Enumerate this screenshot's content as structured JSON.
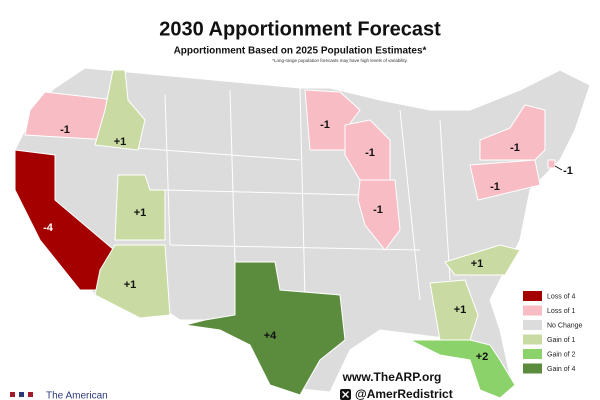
{
  "header": {
    "title": "2030 Apportionment Forecast",
    "subtitle": "Apportionment Based on 2025 Population Estimates*",
    "footnote": "*Long-range population forecasts may have high levels of variability."
  },
  "map": {
    "background_color": "#dcdcdc",
    "regions": [
      {
        "label": "-4",
        "color": "#a50000"
      },
      {
        "label": "-1",
        "color": "#f8bcc4"
      },
      {
        "label": "+1",
        "color": "#c9dba2"
      },
      {
        "label": "+1",
        "color": "#c9dba2"
      },
      {
        "label": "+1",
        "color": "#c9dba2"
      },
      {
        "label": "+4",
        "color": "#5b8c3e"
      },
      {
        "label": "-1",
        "color": "#f8bcc4"
      },
      {
        "label": "-1",
        "color": "#f8bcc4"
      },
      {
        "label": "-1",
        "color": "#f8bcc4"
      },
      {
        "label": "-1",
        "color": "#f8bcc4"
      },
      {
        "label": "-1",
        "color": "#f8bcc4"
      },
      {
        "label": "-1",
        "color": "#f8bcc4"
      },
      {
        "label": "+1",
        "color": "#c9dba2"
      },
      {
        "label": "+1",
        "color": "#c9dba2"
      },
      {
        "label": "+2",
        "color": "#8bd26a"
      }
    ]
  },
  "legend": [
    {
      "label": "Loss of 4",
      "color": "#a50000"
    },
    {
      "label": "Loss of 1",
      "color": "#f8bcc4"
    },
    {
      "label": "No Change",
      "color": "#dcdcdc"
    },
    {
      "label": "Gain of 1",
      "color": "#c9dba2"
    },
    {
      "label": "Gain of 2",
      "color": "#8bd26a"
    },
    {
      "label": "Gain of 4",
      "color": "#5b8c3e"
    }
  ],
  "footer": {
    "website": "www.TheARP.org",
    "handle": "@AmerRedistrict",
    "brand": "The American"
  }
}
